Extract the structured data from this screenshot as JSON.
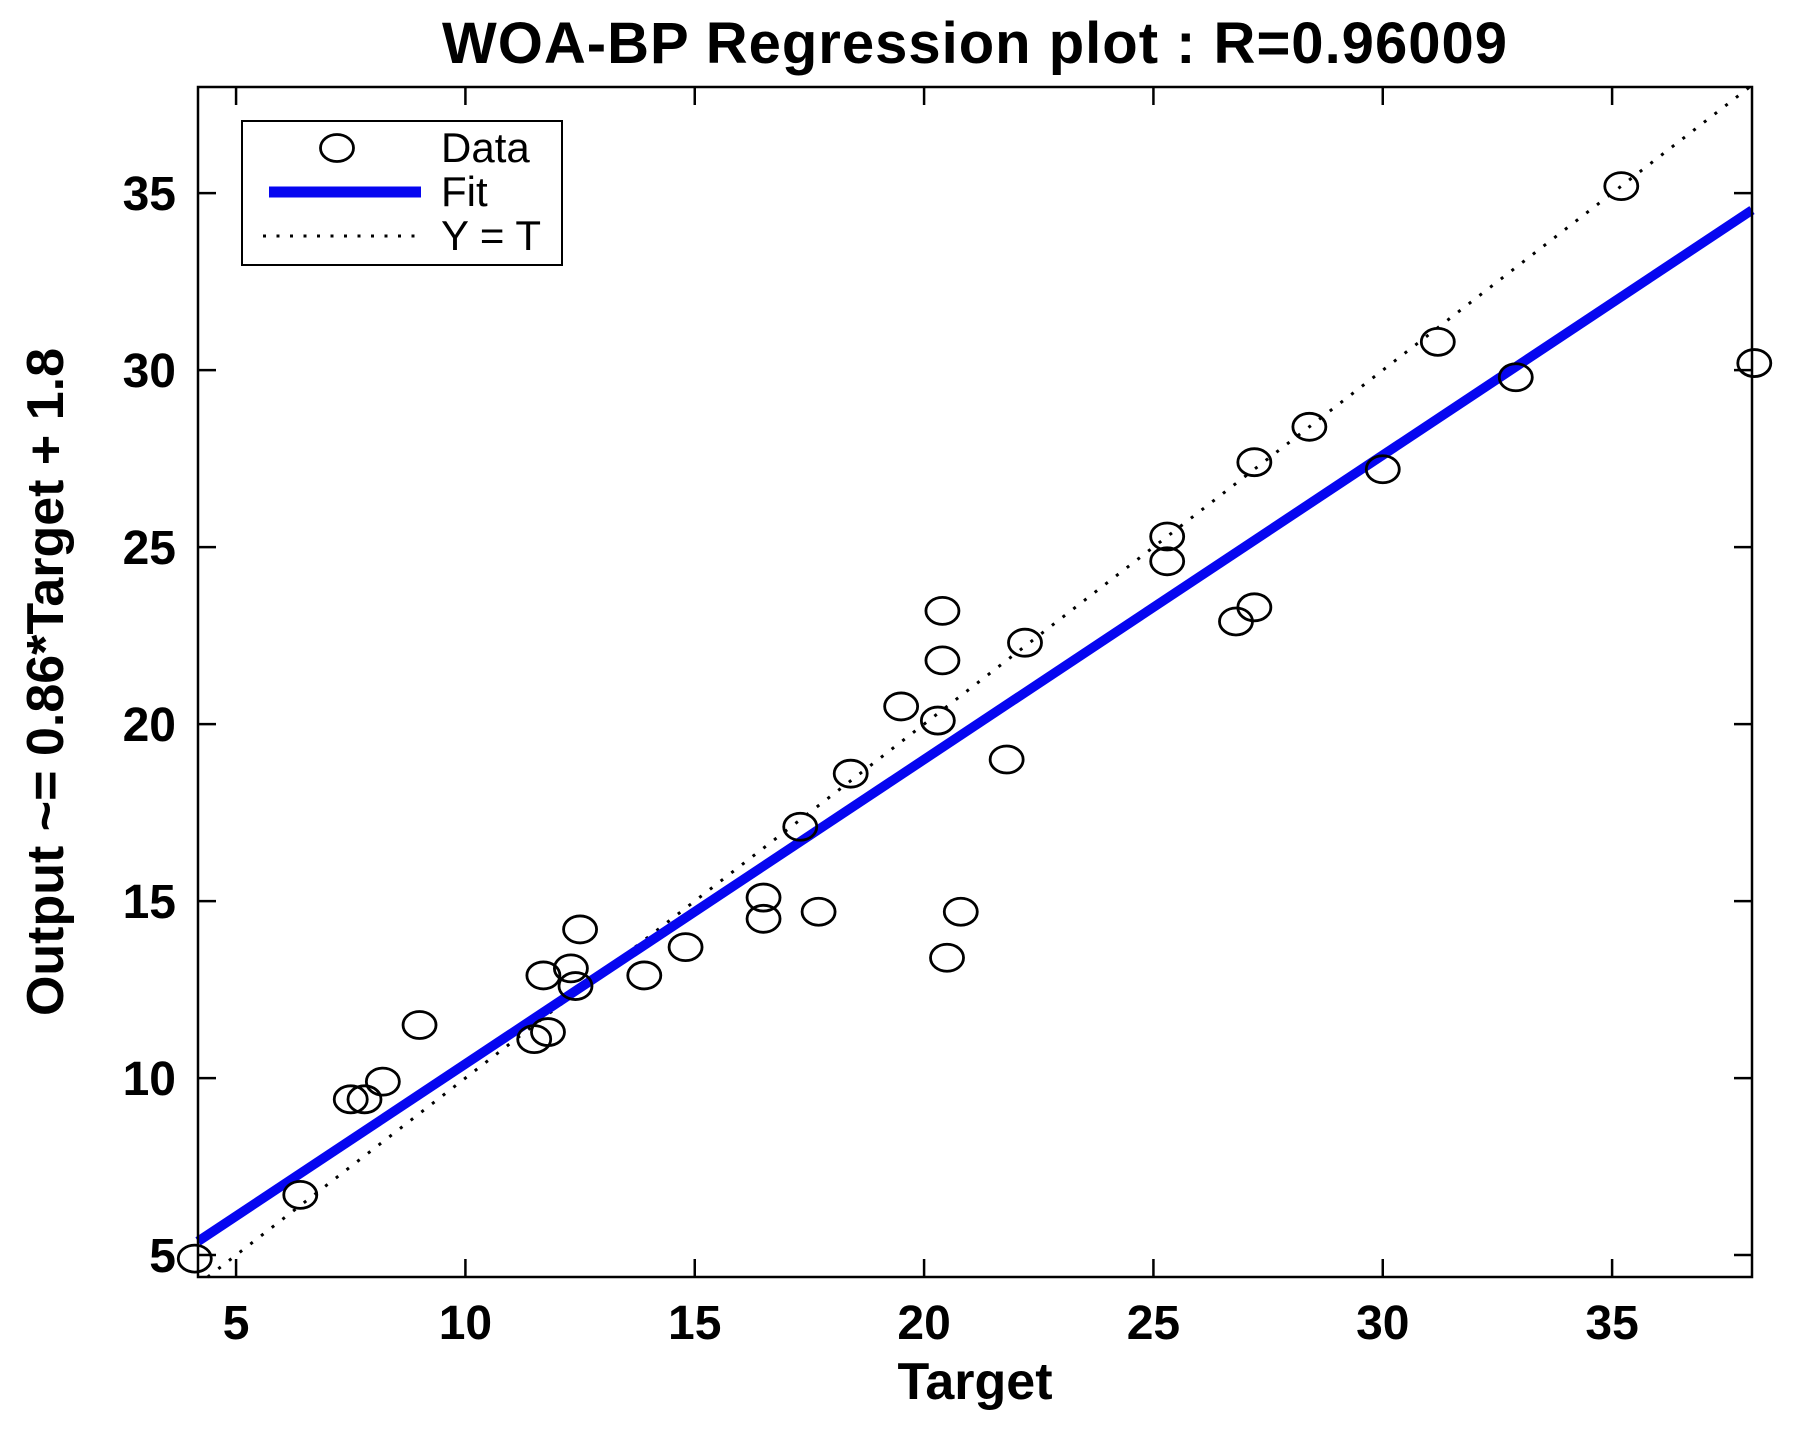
{
  "chart_data": {
    "type": "scatter",
    "title": "WOA-BP Regression plot : R=0.96009",
    "xlabel": "Target",
    "ylabel": "Output ~= 0.86*Target + 1.8",
    "r_value": 0.96009,
    "xlim": [
      4.17,
      38.05
    ],
    "ylim": [
      4.38,
      38.0
    ],
    "x_ticks": [
      5,
      10,
      15,
      20,
      25,
      30,
      35
    ],
    "y_ticks": [
      5,
      10,
      15,
      20,
      25,
      30,
      35
    ],
    "grid": false,
    "legend_position": "top-left",
    "legend": [
      {
        "label": "Data",
        "marker": "circle"
      },
      {
        "label": "Fit",
        "marker": "solid-line"
      },
      {
        "label": "Y = T",
        "marker": "dotted-line"
      }
    ],
    "series": [
      {
        "name": "Data",
        "type": "scatter",
        "points": [
          [
            4.1,
            4.9
          ],
          [
            6.4,
            6.7
          ],
          [
            7.5,
            9.4
          ],
          [
            7.8,
            9.4
          ],
          [
            8.2,
            9.9
          ],
          [
            9.0,
            11.5
          ],
          [
            11.5,
            11.1
          ],
          [
            11.8,
            11.3
          ],
          [
            11.7,
            12.9
          ],
          [
            12.3,
            13.1
          ],
          [
            12.4,
            12.6
          ],
          [
            12.5,
            14.2
          ],
          [
            13.9,
            12.9
          ],
          [
            14.8,
            13.7
          ],
          [
            16.5,
            15.1
          ],
          [
            16.5,
            14.5
          ],
          [
            17.3,
            17.1
          ],
          [
            17.7,
            14.7
          ],
          [
            18.4,
            18.6
          ],
          [
            19.5,
            20.5
          ],
          [
            20.3,
            20.1
          ],
          [
            20.4,
            21.8
          ],
          [
            20.4,
            23.2
          ],
          [
            20.5,
            13.4
          ],
          [
            20.8,
            14.7
          ],
          [
            21.8,
            19.0
          ],
          [
            22.2,
            22.3
          ],
          [
            25.3,
            25.3
          ],
          [
            25.3,
            24.6
          ],
          [
            26.8,
            22.9
          ],
          [
            27.2,
            23.3
          ],
          [
            27.2,
            27.4
          ],
          [
            28.4,
            28.4
          ],
          [
            30.0,
            27.2
          ],
          [
            31.2,
            30.8
          ],
          [
            32.9,
            29.8
          ],
          [
            35.2,
            35.2
          ],
          [
            38.1,
            30.2
          ]
        ]
      },
      {
        "name": "Fit",
        "type": "line",
        "slope": 0.86,
        "intercept": 1.8
      },
      {
        "name": "Y = T",
        "type": "identity-line"
      }
    ],
    "colors": {
      "fit_line": "#0606f0",
      "marker": "#000000",
      "identity_line": "#000000",
      "axis": "#000000"
    }
  }
}
